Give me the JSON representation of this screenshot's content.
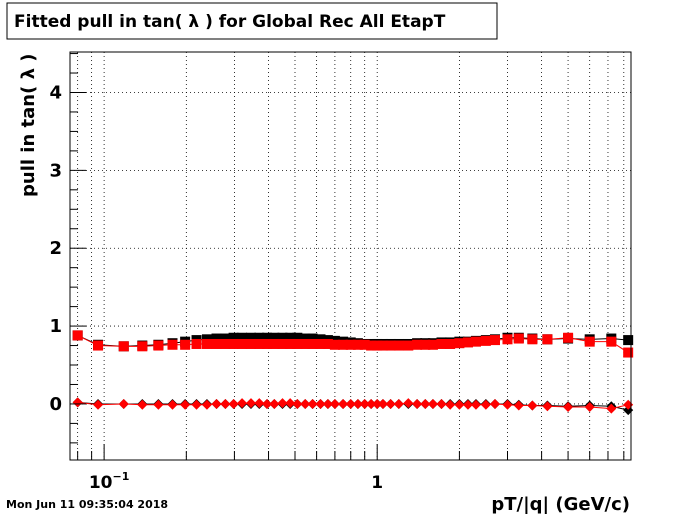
{
  "title": "Fitted pull in tan( λ ) for Global Rec All EtapT",
  "datestamp": "Mon Jun 11 09:35:04 2018",
  "chart_data": {
    "type": "scatter",
    "title": "Fitted pull in tan( λ ) for Global Rec All EtapT",
    "xlabel": "pT/|q| (GeV/c)",
    "ylabel": "pull in tan( λ )",
    "xscale": "log",
    "xlim": [
      0.075,
      8.5
    ],
    "ylim": [
      -0.72,
      4.52
    ],
    "grid": true,
    "x_tick_labels": [
      {
        "value": 0.1,
        "base": "10",
        "exp": "−1"
      },
      {
        "value": 1,
        "base": "1",
        "exp": ""
      }
    ],
    "y_ticks": [
      0,
      1,
      2,
      3,
      4
    ],
    "series": [
      {
        "marker": "square",
        "color": "#000000",
        "x": [
          0.08,
          0.095,
          0.118,
          0.138,
          0.158,
          0.178,
          0.198,
          0.218,
          0.238,
          0.258,
          0.278,
          0.298,
          0.32,
          0.345,
          0.37,
          0.395,
          0.42,
          0.45,
          0.48,
          0.51,
          0.545,
          0.58,
          0.62,
          0.66,
          0.7,
          0.75,
          0.8,
          0.85,
          0.9,
          0.95,
          1.0,
          1.05,
          1.12,
          1.2,
          1.3,
          1.4,
          1.5,
          1.6,
          1.72,
          1.85,
          2.0,
          2.15,
          2.3,
          2.5,
          2.7,
          3.0,
          3.3,
          3.7,
          4.2,
          5.0,
          6.0,
          7.2,
          8.3
        ],
        "y": [
          0.88,
          0.76,
          0.74,
          0.75,
          0.76,
          0.78,
          0.8,
          0.82,
          0.83,
          0.84,
          0.84,
          0.85,
          0.85,
          0.85,
          0.85,
          0.85,
          0.85,
          0.85,
          0.85,
          0.85,
          0.84,
          0.84,
          0.83,
          0.82,
          0.81,
          0.8,
          0.79,
          0.78,
          0.77,
          0.77,
          0.77,
          0.77,
          0.77,
          0.77,
          0.77,
          0.78,
          0.78,
          0.78,
          0.79,
          0.79,
          0.8,
          0.8,
          0.81,
          0.82,
          0.83,
          0.85,
          0.85,
          0.84,
          0.83,
          0.84,
          0.83,
          0.84,
          0.82
        ]
      },
      {
        "marker": "square",
        "color": "#ff0000",
        "x": [
          0.08,
          0.095,
          0.118,
          0.138,
          0.158,
          0.178,
          0.198,
          0.218,
          0.238,
          0.258,
          0.278,
          0.298,
          0.32,
          0.345,
          0.37,
          0.395,
          0.42,
          0.45,
          0.48,
          0.51,
          0.545,
          0.58,
          0.62,
          0.66,
          0.7,
          0.75,
          0.8,
          0.85,
          0.9,
          0.95,
          1.0,
          1.05,
          1.12,
          1.2,
          1.3,
          1.4,
          1.5,
          1.6,
          1.72,
          1.85,
          2.0,
          2.15,
          2.3,
          2.5,
          2.7,
          3.0,
          3.3,
          3.7,
          4.2,
          5.0,
          6.0,
          7.2,
          8.3
        ],
        "y": [
          0.88,
          0.75,
          0.74,
          0.74,
          0.75,
          0.76,
          0.76,
          0.77,
          0.77,
          0.77,
          0.77,
          0.77,
          0.77,
          0.77,
          0.77,
          0.77,
          0.77,
          0.77,
          0.77,
          0.77,
          0.77,
          0.77,
          0.77,
          0.77,
          0.76,
          0.76,
          0.76,
          0.76,
          0.76,
          0.75,
          0.75,
          0.75,
          0.75,
          0.75,
          0.75,
          0.76,
          0.76,
          0.76,
          0.77,
          0.77,
          0.78,
          0.79,
          0.8,
          0.81,
          0.82,
          0.83,
          0.84,
          0.83,
          0.83,
          0.85,
          0.8,
          0.8,
          0.66
        ]
      },
      {
        "marker": "diamond",
        "color": "#000000",
        "x": [
          0.08,
          0.095,
          0.118,
          0.138,
          0.158,
          0.178,
          0.198,
          0.218,
          0.238,
          0.258,
          0.278,
          0.298,
          0.32,
          0.345,
          0.37,
          0.395,
          0.42,
          0.45,
          0.48,
          0.51,
          0.545,
          0.58,
          0.62,
          0.66,
          0.7,
          0.75,
          0.8,
          0.85,
          0.9,
          0.95,
          1.0,
          1.05,
          1.12,
          1.2,
          1.3,
          1.4,
          1.5,
          1.6,
          1.72,
          1.85,
          2.0,
          2.15,
          2.3,
          2.5,
          2.7,
          3.0,
          3.3,
          3.7,
          4.2,
          5.0,
          6.0,
          7.2,
          8.3
        ],
        "y": [
          0.02,
          0.0,
          0.0,
          0.0,
          0.0,
          0.0,
          0.0,
          0.0,
          0.0,
          0.0,
          0.0,
          0.0,
          0.0,
          0.0,
          0.0,
          0.0,
          0.0,
          0.0,
          0.0,
          0.0,
          0.0,
          0.0,
          0.0,
          0.0,
          0.0,
          0.0,
          0.0,
          0.0,
          0.0,
          0.0,
          0.0,
          0.0,
          0.0,
          0.0,
          0.0,
          0.0,
          0.0,
          0.0,
          0.0,
          0.0,
          0.0,
          0.0,
          0.0,
          0.0,
          0.0,
          0.0,
          -0.01,
          -0.02,
          -0.02,
          -0.03,
          -0.02,
          -0.03,
          -0.08
        ]
      },
      {
        "marker": "diamond",
        "color": "#ff0000",
        "x": [
          0.08,
          0.095,
          0.118,
          0.138,
          0.158,
          0.178,
          0.198,
          0.218,
          0.238,
          0.258,
          0.278,
          0.298,
          0.32,
          0.345,
          0.37,
          0.395,
          0.42,
          0.45,
          0.48,
          0.51,
          0.545,
          0.58,
          0.62,
          0.66,
          0.7,
          0.75,
          0.8,
          0.85,
          0.9,
          0.95,
          1.0,
          1.05,
          1.12,
          1.2,
          1.3,
          1.4,
          1.5,
          1.6,
          1.72,
          1.85,
          2.0,
          2.15,
          2.3,
          2.5,
          2.7,
          3.0,
          3.3,
          3.7,
          4.2,
          5.0,
          6.0,
          7.2,
          8.3
        ],
        "y": [
          0.02,
          -0.01,
          0.0,
          -0.01,
          -0.01,
          -0.01,
          -0.01,
          -0.01,
          -0.01,
          0.0,
          0.0,
          0.0,
          0.01,
          0.01,
          0.01,
          0.0,
          0.0,
          0.01,
          0.01,
          0.0,
          0.0,
          0.0,
          0.0,
          0.0,
          0.0,
          0.0,
          0.0,
          0.0,
          0.0,
          0.0,
          0.0,
          0.0,
          0.0,
          0.0,
          0.01,
          0.0,
          0.0,
          0.0,
          0.0,
          -0.01,
          -0.01,
          -0.01,
          -0.01,
          -0.01,
          0.0,
          -0.01,
          -0.02,
          -0.02,
          -0.03,
          -0.04,
          -0.04,
          -0.06,
          -0.01
        ]
      }
    ]
  }
}
